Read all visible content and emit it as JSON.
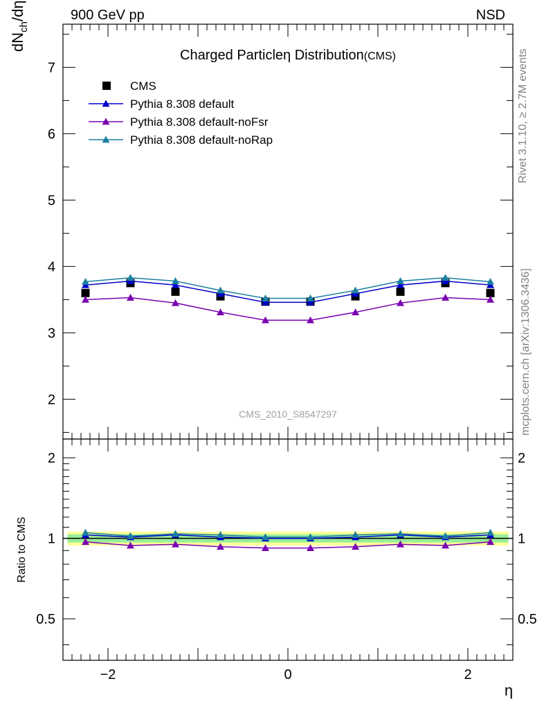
{
  "header": {
    "left": "900 GeV pp",
    "right": "NSD"
  },
  "title": "Charged Particleη Distribution",
  "title_suffix": "(CMS)",
  "analysis_label": "CMS_2010_S8547297",
  "side_text": {
    "upper": "Rivet 3.1.10, ≥ 2.7M events",
    "lower": "mcplots.cern.ch [arXiv:1306.3436]"
  },
  "chart_data": [
    {
      "type": "line",
      "panel": "main",
      "ylabel": "dN_ch/dη",
      "ylim": [
        1.4,
        7.65
      ],
      "xlim": [
        -2.5,
        2.5
      ],
      "yticks": [
        "2",
        "3",
        "4",
        "5",
        "6",
        "7"
      ],
      "x": [
        -2.25,
        -1.75,
        -1.25,
        -0.75,
        -0.25,
        0.25,
        0.75,
        1.25,
        1.75,
        2.25
      ],
      "series": [
        {
          "name": "CMS",
          "color": "#000000",
          "marker": "square",
          "style": "points",
          "values": [
            3.6,
            3.75,
            3.62,
            3.55,
            3.47,
            3.47,
            3.55,
            3.62,
            3.75,
            3.6
          ]
        },
        {
          "name": "Pythia 8.308 default",
          "color": "#0000cc",
          "marker": "triangle",
          "values": [
            3.72,
            3.78,
            3.72,
            3.59,
            3.46,
            3.46,
            3.59,
            3.72,
            3.78,
            3.72
          ]
        },
        {
          "name": "Pythia 8.308 default-noFsr",
          "color": "#7a00b0",
          "marker": "triangle",
          "values": [
            3.5,
            3.53,
            3.45,
            3.31,
            3.19,
            3.19,
            3.31,
            3.45,
            3.53,
            3.5
          ]
        },
        {
          "name": "Pythia 8.308 default-noRap",
          "color": "#1a7fa0",
          "marker": "triangle",
          "values": [
            3.77,
            3.83,
            3.78,
            3.64,
            3.52,
            3.52,
            3.64,
            3.78,
            3.83,
            3.77
          ]
        }
      ],
      "legend_position": "top-left"
    },
    {
      "type": "line",
      "panel": "ratio",
      "ylabel": "Ratio to CMS",
      "ylim": [
        0.35,
        2.35
      ],
      "xlim": [
        -2.5,
        2.5
      ],
      "xlabel": "η",
      "xticks": [
        "−2",
        "0",
        "2"
      ],
      "yticks": [
        "0.5",
        "1",
        "2"
      ],
      "x": [
        -2.25,
        -1.75,
        -1.25,
        -0.75,
        -0.25,
        0.25,
        0.75,
        1.25,
        1.75,
        2.25
      ],
      "bands": {
        "yellow_halfwidth": 0.06,
        "green_halfwidth": 0.035,
        "yellow_color": "#ffff99",
        "green_color": "#99ee99"
      },
      "series": [
        {
          "name": "Pythia 8.308 default",
          "color": "#0000cc",
          "values": [
            1.03,
            1.01,
            1.03,
            1.01,
            1.0,
            1.0,
            1.01,
            1.03,
            1.01,
            1.03
          ]
        },
        {
          "name": "Pythia 8.308 default-noFsr",
          "color": "#7a00b0",
          "values": [
            0.97,
            0.94,
            0.95,
            0.93,
            0.92,
            0.92,
            0.93,
            0.95,
            0.94,
            0.97
          ]
        },
        {
          "name": "Pythia 8.308 default-noRap",
          "color": "#1a7fa0",
          "values": [
            1.05,
            1.02,
            1.04,
            1.03,
            1.01,
            1.01,
            1.03,
            1.04,
            1.02,
            1.05
          ]
        }
      ]
    }
  ]
}
